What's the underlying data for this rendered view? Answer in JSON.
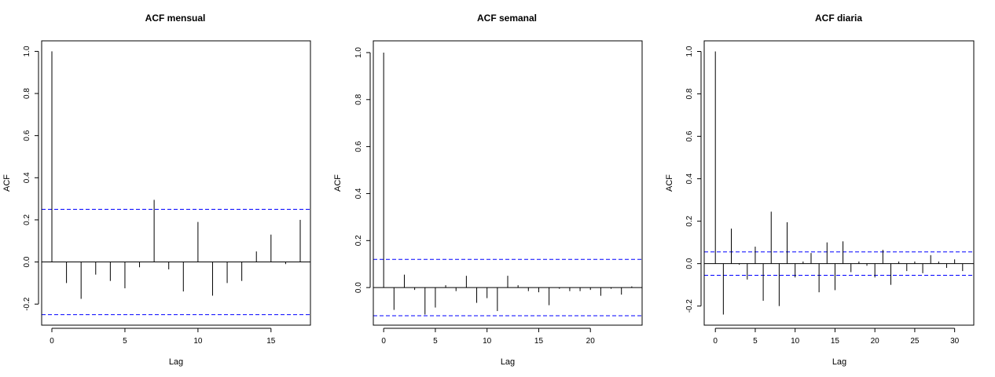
{
  "chart_data": [
    {
      "type": "acf",
      "title": "ACF mensual",
      "xlabel": "Lag",
      "ylabel": "ACF",
      "xlim": [
        -0.7,
        17.7
      ],
      "ylim": [
        -0.3,
        1.05
      ],
      "xticks": [
        0,
        5,
        10,
        15
      ],
      "yticks": [
        -0.2,
        0.0,
        0.2,
        0.4,
        0.6,
        0.8,
        1.0
      ],
      "ytick_labels": [
        "-0.2",
        "0.0",
        "0.2",
        "0.4",
        "0.6",
        "0.8",
        "1.0"
      ],
      "conf_bound": 0.25,
      "conf_color": "#0000ff",
      "series": [
        {
          "name": "ACF",
          "lags": [
            0,
            1,
            2,
            3,
            4,
            5,
            6,
            7,
            8,
            9,
            10,
            11,
            12,
            13,
            14,
            15,
            16,
            17
          ],
          "values": [
            1.0,
            -0.1,
            -0.175,
            -0.06,
            -0.09,
            -0.125,
            -0.025,
            0.295,
            -0.035,
            -0.14,
            0.19,
            -0.16,
            -0.1,
            -0.09,
            0.05,
            0.13,
            -0.01,
            0.2
          ]
        }
      ]
    },
    {
      "type": "acf",
      "title": "ACF semanal",
      "xlabel": "Lag",
      "ylabel": "ACF",
      "xlim": [
        -1.0,
        25.0
      ],
      "ylim": [
        -0.16,
        1.05
      ],
      "xticks": [
        0,
        5,
        10,
        15,
        20
      ],
      "yticks": [
        0.0,
        0.2,
        0.4,
        0.6,
        0.8,
        1.0
      ],
      "ytick_labels": [
        "0.0",
        "0.2",
        "0.4",
        "0.6",
        "0.8",
        "1.0"
      ],
      "conf_bound": 0.12,
      "conf_color": "#0000ff",
      "series": [
        {
          "name": "ACF",
          "lags": [
            0,
            1,
            2,
            3,
            4,
            5,
            6,
            7,
            8,
            9,
            10,
            11,
            12,
            13,
            14,
            15,
            16,
            17,
            18,
            19,
            20,
            21,
            22,
            23,
            24
          ],
          "values": [
            1.0,
            -0.095,
            0.055,
            -0.01,
            -0.115,
            -0.085,
            0.01,
            -0.015,
            0.05,
            -0.065,
            -0.045,
            -0.1,
            0.05,
            0.01,
            -0.015,
            -0.02,
            -0.075,
            -0.005,
            -0.015,
            -0.015,
            -0.01,
            -0.035,
            -0.005,
            -0.03,
            0.005
          ]
        }
      ]
    },
    {
      "type": "acf",
      "title": "ACF diaria",
      "xlabel": "Lag",
      "ylabel": "ACF",
      "xlim": [
        -1.4,
        32.4
      ],
      "ylim": [
        -0.29,
        1.05
      ],
      "xticks": [
        0,
        5,
        10,
        15,
        20,
        25,
        30
      ],
      "yticks": [
        -0.2,
        0.0,
        0.2,
        0.4,
        0.6,
        0.8,
        1.0
      ],
      "ytick_labels": [
        "-0.2",
        "0.0",
        "0.2",
        "0.4",
        "0.6",
        "0.8",
        "1.0"
      ],
      "conf_bound": 0.055,
      "conf_color": "#0000ff",
      "series": [
        {
          "name": "ACF",
          "lags": [
            0,
            1,
            2,
            3,
            4,
            5,
            6,
            7,
            8,
            9,
            10,
            11,
            12,
            13,
            14,
            15,
            16,
            17,
            18,
            19,
            20,
            21,
            22,
            23,
            24,
            25,
            26,
            27,
            28,
            29,
            30,
            31
          ],
          "values": [
            1.0,
            -0.24,
            0.165,
            -0.005,
            -0.075,
            0.08,
            -0.175,
            0.245,
            -0.2,
            0.195,
            -0.065,
            0.01,
            0.05,
            -0.135,
            0.1,
            -0.125,
            0.105,
            -0.04,
            0.01,
            -0.01,
            -0.065,
            0.065,
            -0.1,
            0.01,
            -0.035,
            0.01,
            -0.045,
            0.04,
            0.01,
            -0.02,
            0.02,
            -0.035
          ]
        }
      ]
    }
  ]
}
